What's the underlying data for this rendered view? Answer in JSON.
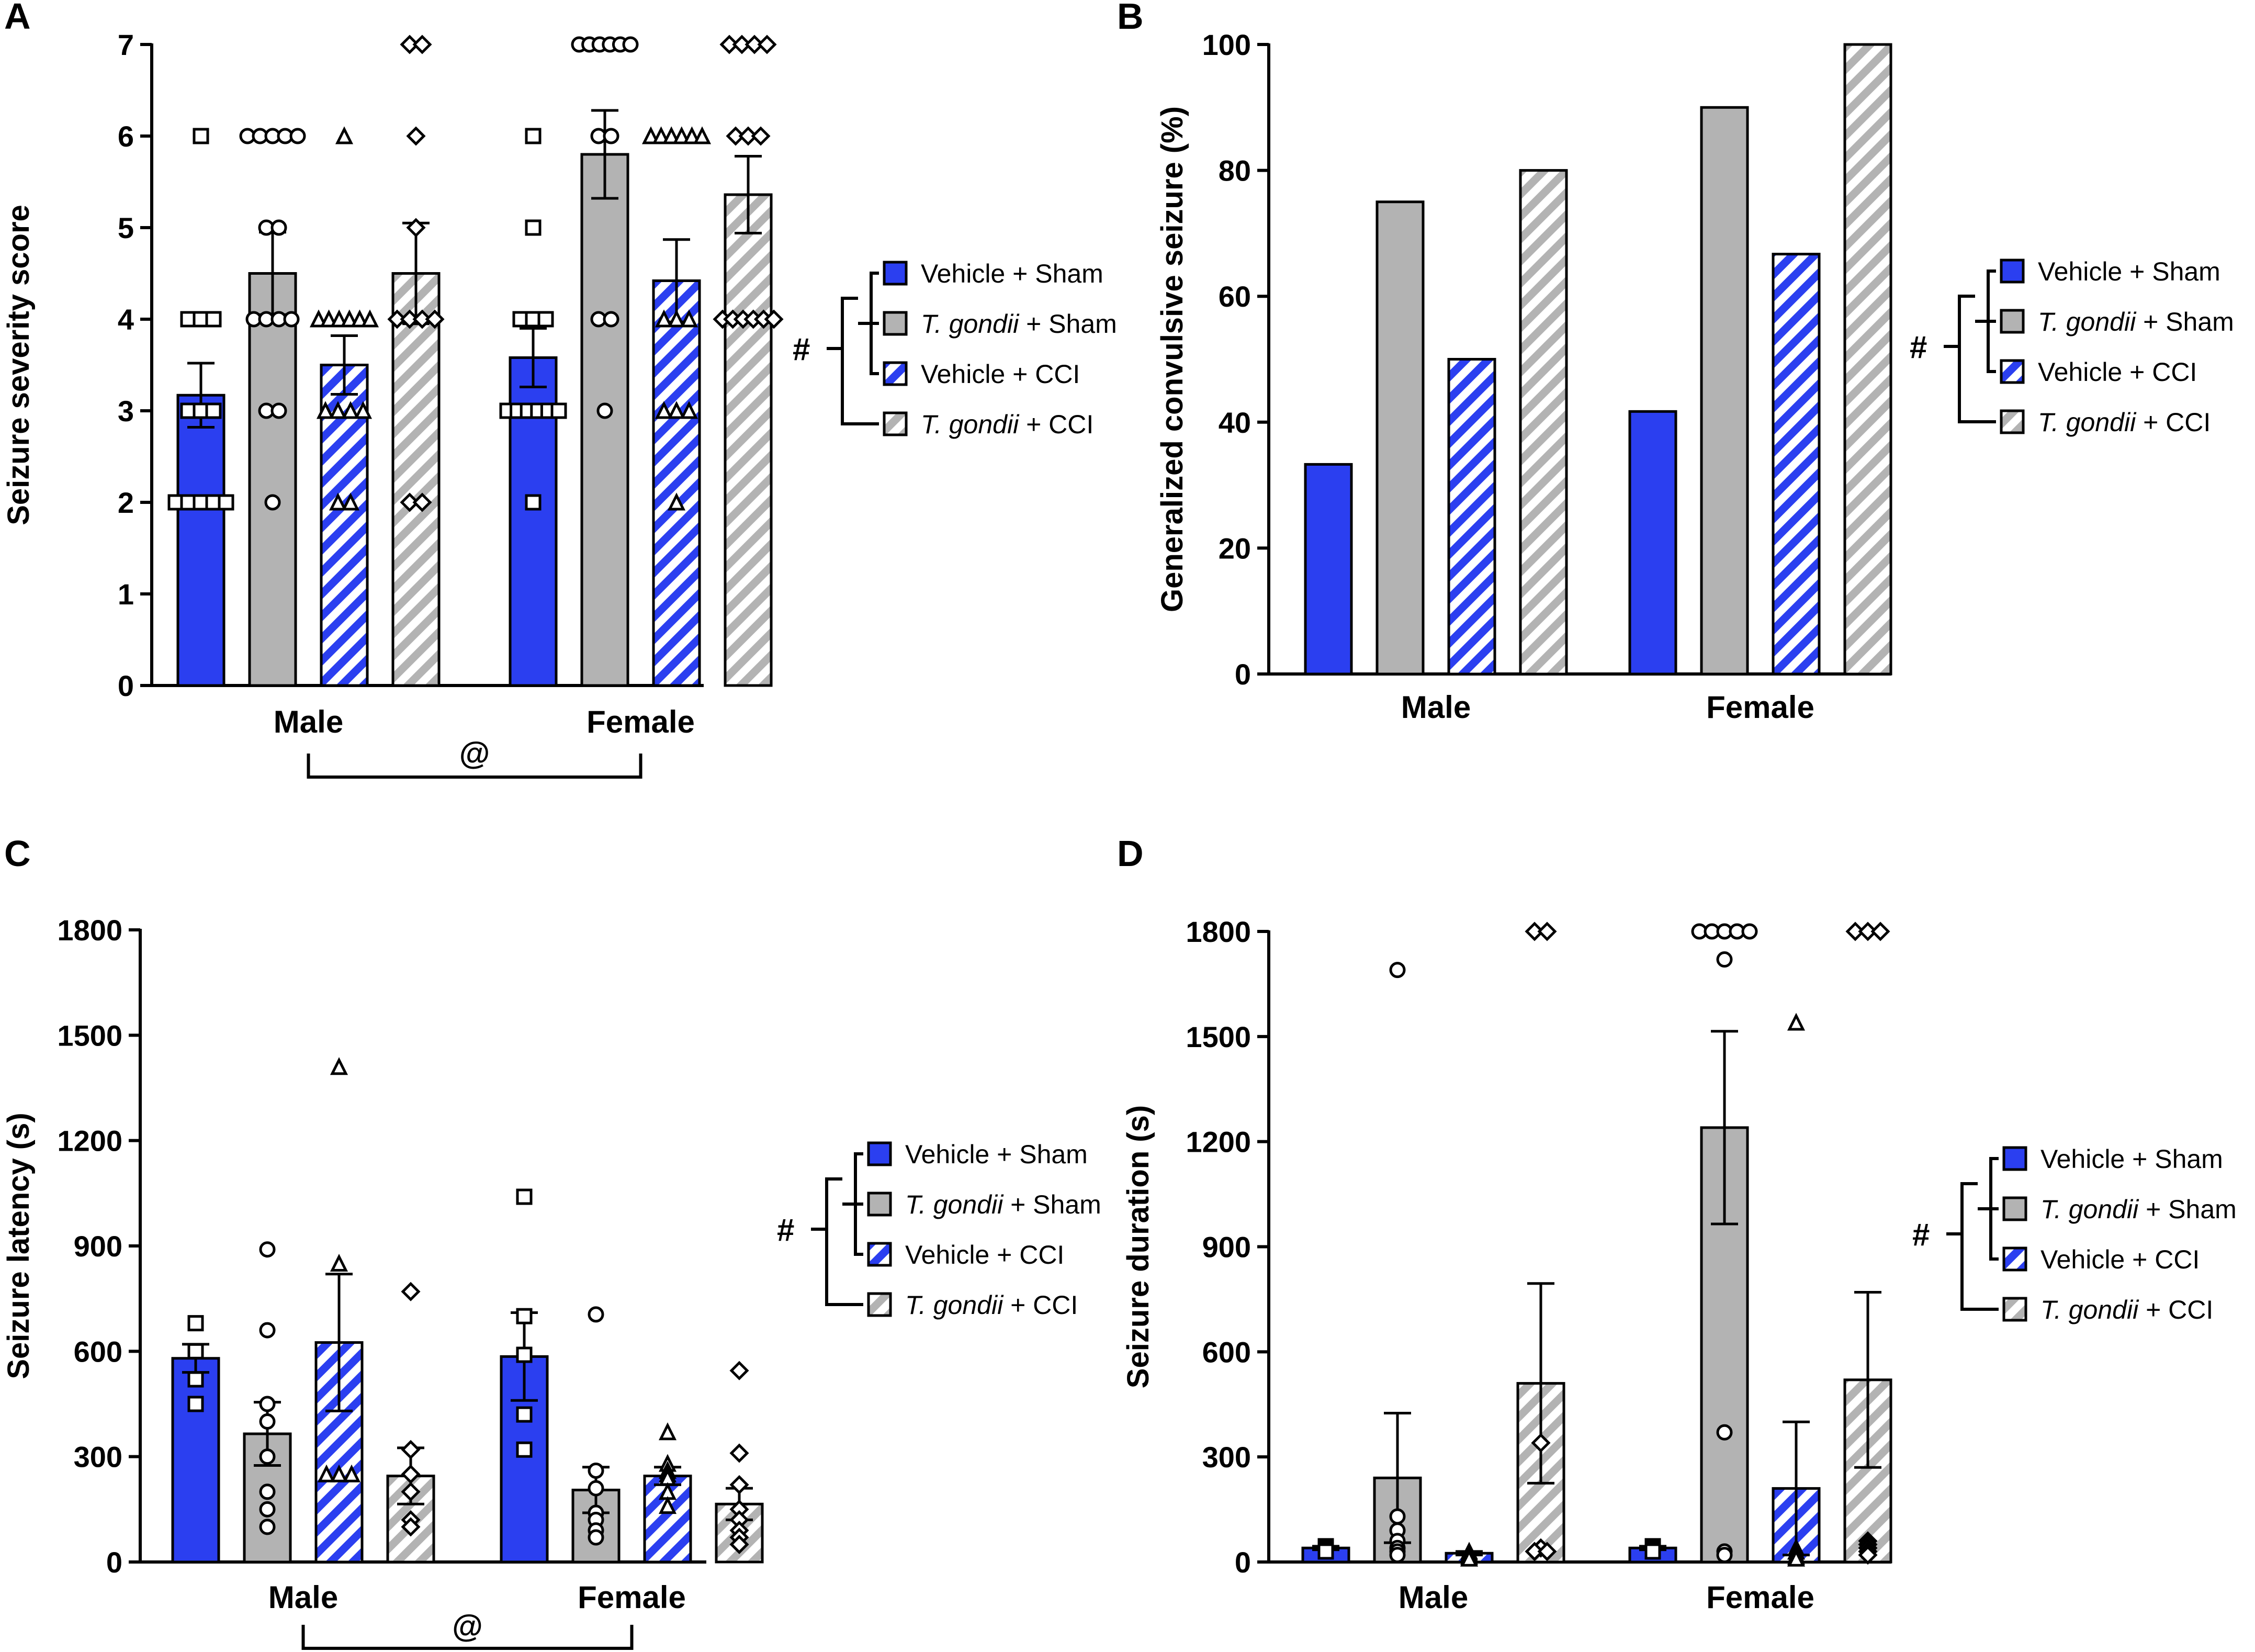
{
  "figure": {
    "legend_items": [
      {
        "label_prefix": "Vehicle",
        "label_suffix": " + Sham",
        "italic": false,
        "fill": "blue",
        "hatched": false
      },
      {
        "label_prefix": "T. gondii",
        "label_suffix": " + Sham",
        "italic": true,
        "fill": "grey",
        "hatched": false
      },
      {
        "label_prefix": "Vehicle",
        "label_suffix": " + CCI",
        "italic": false,
        "fill": "blue",
        "hatched": true
      },
      {
        "label_prefix": "T. gondii",
        "label_suffix": " + CCI",
        "italic": true,
        "fill": "grey",
        "hatched": true
      }
    ],
    "legend_significance": "#",
    "colors": {
      "blue": "#2b3ff0",
      "grey": "#b3b3b3",
      "stroke": "#000000",
      "background": "#ffffff"
    }
  },
  "chart_data": [
    {
      "panel": "A",
      "type": "bar",
      "ylabel": "Seizure severity score",
      "ylim": [
        0,
        7
      ],
      "yticks": [
        0,
        1,
        2,
        3,
        4,
        5,
        6,
        7
      ],
      "categories": [
        "Male",
        "Female"
      ],
      "series": [
        {
          "name": "Vehicle + Sham",
          "values": [
            3.17,
            3.58
          ],
          "sem": [
            0.35,
            0.32
          ],
          "points": [
            [
              6,
              4,
              4,
              4,
              3,
              3,
              3,
              2,
              2,
              2,
              2,
              2
            ],
            [
              6,
              5,
              4,
              4,
              4,
              3,
              3,
              3,
              3,
              3,
              3,
              2
            ]
          ],
          "marker": "square"
        },
        {
          "name": "T. gondii + Sham",
          "values": [
            4.5,
            5.8
          ],
          "sem": [
            0.45,
            0.48
          ],
          "points": [
            [
              6,
              6,
              6,
              6,
              6,
              5,
              5,
              4,
              4,
              4,
              4,
              3,
              3,
              2
            ],
            [
              7,
              7,
              7,
              7,
              7,
              7,
              6,
              6,
              4,
              4,
              3
            ]
          ],
          "marker": "circle"
        },
        {
          "name": "Vehicle + CCI",
          "values": [
            3.5,
            4.42
          ],
          "sem": [
            0.32,
            0.45
          ],
          "points": [
            [
              6,
              4,
              4,
              4,
              4,
              4,
              4,
              3,
              3,
              3,
              3,
              2,
              2
            ],
            [
              6,
              6,
              6,
              6,
              6,
              6,
              4,
              4,
              4,
              3,
              3,
              3,
              2
            ]
          ],
          "marker": "triangle"
        },
        {
          "name": "T. gondii + CCI",
          "values": [
            4.5,
            5.36
          ],
          "sem": [
            0.55,
            0.42
          ],
          "points": [
            [
              7,
              7,
              6,
              5,
              4,
              4,
              4,
              4,
              2,
              2
            ],
            [
              7,
              7,
              7,
              7,
              6,
              6,
              6,
              4,
              4,
              4,
              4,
              4,
              4
            ]
          ],
          "marker": "diamond"
        }
      ],
      "significance": {
        "symbol": "@",
        "bracket": [
          "Male",
          "Female"
        ]
      }
    },
    {
      "panel": "B",
      "type": "bar",
      "ylabel": "Generalized convulsive seizure (%)",
      "ylim": [
        0,
        100
      ],
      "yticks": [
        0,
        20,
        40,
        60,
        80,
        100
      ],
      "categories": [
        "Male",
        "Female"
      ],
      "series": [
        {
          "name": "Vehicle + Sham",
          "values": [
            33.3,
            41.7
          ]
        },
        {
          "name": "T. gondii + Sham",
          "values": [
            75,
            90
          ]
        },
        {
          "name": "Vehicle + CCI",
          "values": [
            50,
            66.7
          ]
        },
        {
          "name": "T. gondii + CCI",
          "values": [
            80,
            100
          ]
        }
      ]
    },
    {
      "panel": "C",
      "type": "bar",
      "ylabel": "Seizure latency (s)",
      "ylim": [
        0,
        1800
      ],
      "yticks": [
        0,
        300,
        600,
        900,
        1200,
        1500,
        1800
      ],
      "categories": [
        "Male",
        "Female"
      ],
      "series": [
        {
          "name": "Vehicle + Sham",
          "values": [
            580,
            585
          ],
          "sem": [
            40,
            125
          ],
          "points": [
            [
              680,
              600,
              520,
              450
            ],
            [
              1040,
              700,
              590,
              420,
              320
            ]
          ],
          "marker": "square"
        },
        {
          "name": "T. gondii + Sham",
          "values": [
            365,
            205
          ],
          "sem": [
            90,
            65
          ],
          "points": [
            [
              890,
              660,
              450,
              400,
              300,
              200,
              150,
              100
            ],
            [
              705,
              260,
              210,
              140,
              120,
              90,
              70
            ]
          ],
          "marker": "circle"
        },
        {
          "name": "Vehicle + CCI",
          "values": [
            625,
            245
          ],
          "sem": [
            195,
            25
          ],
          "points": [
            [
              1410,
              850,
              250,
              250,
              250
            ],
            [
              370,
              280,
              260,
              250,
              240,
              200,
              160
            ]
          ],
          "marker": "triangle"
        },
        {
          "name": "T. gondii + CCI",
          "values": [
            245,
            165
          ],
          "sem": [
            80,
            45
          ],
          "points": [
            [
              770,
              320,
              250,
              200,
              120,
              100
            ],
            [
              545,
              310,
              220,
              150,
              120,
              90,
              70,
              50
            ]
          ],
          "marker": "diamond"
        }
      ],
      "significance": {
        "symbol": "@",
        "bracket": [
          "Male",
          "Female"
        ]
      }
    },
    {
      "panel": "D",
      "type": "bar",
      "ylabel": "Seizure duration (s)",
      "ylim": [
        0,
        1800
      ],
      "yticks": [
        0,
        300,
        600,
        900,
        1200,
        1500,
        1800
      ],
      "categories": [
        "Male",
        "Female"
      ],
      "series": [
        {
          "name": "Vehicle + Sham",
          "values": [
            40,
            40
          ],
          "sem": [
            5,
            5
          ],
          "points": [
            [
              45,
              40,
              35,
              30
            ],
            [
              45,
              40,
              35,
              30
            ]
          ],
          "marker": "square"
        },
        {
          "name": "T. gondii + Sham",
          "values": [
            240,
            1240
          ],
          "sem": [
            185,
            275
          ],
          "points": [
            [
              1690,
              130,
              90,
              60,
              40,
              30,
              20
            ],
            [
              1800,
              1800,
              1800,
              1800,
              1800,
              1720,
              370,
              30,
              20
            ]
          ],
          "marker": "circle"
        },
        {
          "name": "Vehicle + CCI",
          "values": [
            25,
            210
          ],
          "sem": [
            5,
            190
          ],
          "points": [
            [
              30,
              25,
              20,
              15,
              10
            ],
            [
              1540,
              40,
              30,
              20,
              15,
              10
            ]
          ],
          "marker": "triangle"
        },
        {
          "name": "T. gondii + CCI",
          "values": [
            510,
            520
          ],
          "sem": [
            285,
            250
          ],
          "points": [
            [
              1800,
              1800,
              340,
              40,
              30,
              30
            ],
            [
              1800,
              1800,
              1800,
              60,
              50,
              40,
              30,
              20
            ]
          ],
          "marker": "diamond"
        }
      ]
    }
  ]
}
